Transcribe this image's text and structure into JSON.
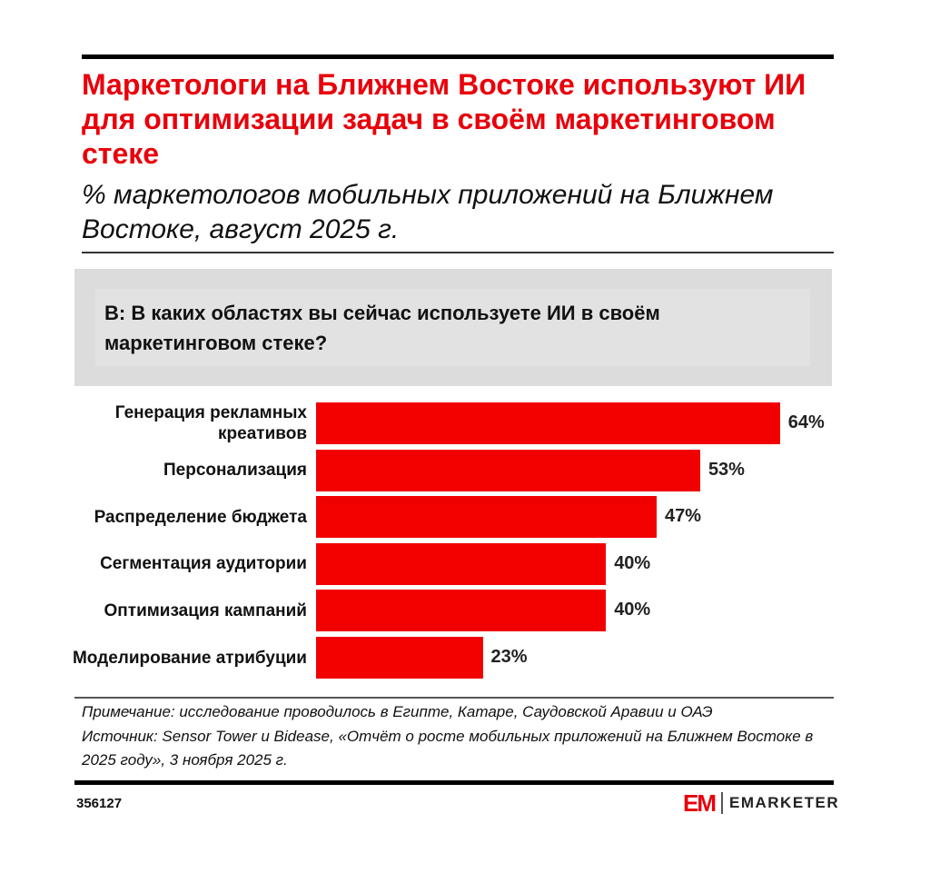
{
  "header": {
    "title": "Маркетологи на Ближнем Востоке используют ИИ для оптимизации задач в своём маркетинговом стеке",
    "subtitle": "% маркетологов мобильных приложений на Ближнем Востоке, август 2025 г."
  },
  "question": "В: В каких областях вы сейчас используете ИИ в своём маркетинговом стеке?",
  "chart_data": {
    "type": "bar",
    "orientation": "horizontal",
    "categories": [
      "Генерация рекламных креативов",
      "Персонализация",
      "Распределение бюджета",
      "Сегментация аудитории",
      "Оптимизация кампаний",
      "Моделирование атрибуции"
    ],
    "values": [
      64,
      53,
      47,
      40,
      40,
      23
    ],
    "value_labels": [
      "64%",
      "53%",
      "47%",
      "40%",
      "40%",
      "23%"
    ],
    "unit": "%",
    "color": "#f20000",
    "xlim": [
      0,
      100
    ]
  },
  "footer": {
    "note": "Примечание: исследование проводилось в Египте, Катаре, Саудовской Аравии и ОАЭ",
    "source": "Источник: Sensor Tower и Bidease, «Отчёт о росте мобильных приложений на Ближнем Востоке в 2025 году», 3 ноября 2025 г.",
    "chart_id": "356127",
    "logo_mark": "EM",
    "logo_text": "EMARKETER"
  }
}
